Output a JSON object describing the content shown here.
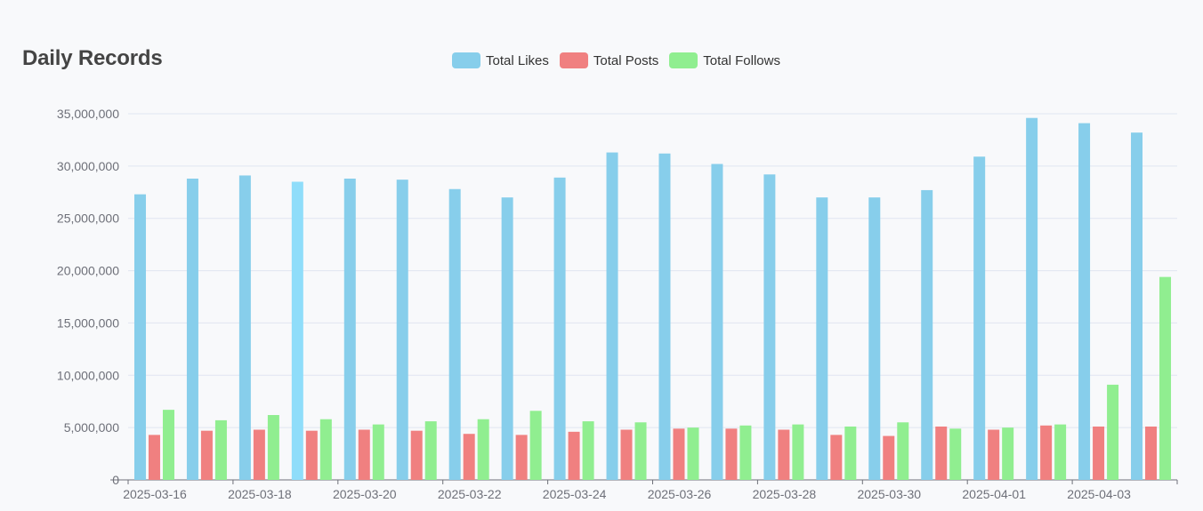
{
  "title": "Daily Records",
  "chart_data": {
    "type": "bar",
    "title": "Daily Records",
    "legend_position": "top-center",
    "grid": true,
    "ylim": [
      0,
      35000000
    ],
    "y_ticks": [
      0,
      5000000,
      10000000,
      15000000,
      20000000,
      25000000,
      30000000,
      35000000
    ],
    "y_tick_labels": [
      "0",
      "5,000,000",
      "10,000,000",
      "15,000,000",
      "20,000,000",
      "25,000,000",
      "30,000,000",
      "35,000,000"
    ],
    "categories": [
      "2025-03-16",
      "2025-03-17",
      "2025-03-18",
      "2025-03-19",
      "2025-03-20",
      "2025-03-21",
      "2025-03-22",
      "2025-03-23",
      "2025-03-24",
      "2025-03-25",
      "2025-03-26",
      "2025-03-27",
      "2025-03-28",
      "2025-03-29",
      "2025-03-30",
      "2025-03-31",
      "2025-04-01",
      "2025-04-02",
      "2025-04-03",
      "2025-04-04"
    ],
    "x_tick_labels": [
      "2025-03-16",
      "2025-03-18",
      "2025-03-20",
      "2025-03-22",
      "2025-03-24",
      "2025-03-26",
      "2025-03-28",
      "2025-03-30",
      "2025-04-01",
      "2025-04-03"
    ],
    "highlighted_index": 3,
    "series": [
      {
        "name": "Total Likes",
        "color": "#87ceeb",
        "highlight_color": "#8fddfa",
        "values": [
          27300000,
          28800000,
          29100000,
          28500000,
          28800000,
          28700000,
          27800000,
          27000000,
          28900000,
          31300000,
          31200000,
          30200000,
          29200000,
          27000000,
          27000000,
          27700000,
          30900000,
          34600000,
          34100000,
          33200000
        ]
      },
      {
        "name": "Total Posts",
        "color": "#f08080",
        "highlight_color": "#f08080",
        "values": [
          4300000,
          4700000,
          4800000,
          4700000,
          4800000,
          4700000,
          4400000,
          4300000,
          4600000,
          4800000,
          4900000,
          4900000,
          4800000,
          4300000,
          4200000,
          5100000,
          4800000,
          5200000,
          5100000,
          5100000
        ]
      },
      {
        "name": "Total Follows",
        "color": "#90ee90",
        "highlight_color": "#90ee90",
        "values": [
          6700000,
          5700000,
          6200000,
          5800000,
          5300000,
          5600000,
          5800000,
          6600000,
          5600000,
          5500000,
          5000000,
          5200000,
          5300000,
          5100000,
          5500000,
          4900000,
          5000000,
          5300000,
          9100000,
          19400000
        ]
      }
    ]
  }
}
